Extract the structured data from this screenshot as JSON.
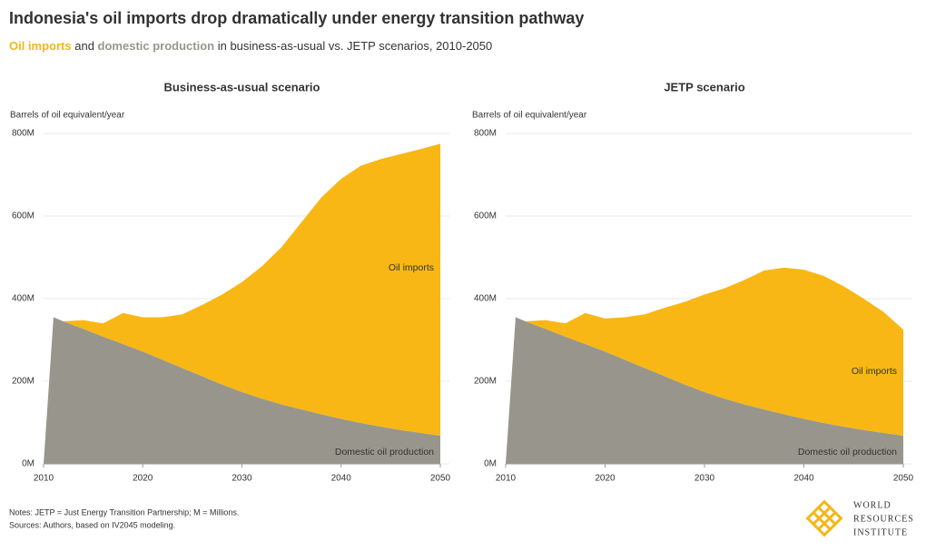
{
  "title": "Indonesia's oil imports drop dramatically under energy transition pathway",
  "subtitle": [
    {
      "text": "Oil imports",
      "color": "#f6b618",
      "bold": true
    },
    {
      "text": " and "
    },
    {
      "text": "domestic production",
      "color": "#98968c",
      "bold": true
    },
    {
      "text": " in business-as-usual vs. JETP scenarios, 2010-2050"
    }
  ],
  "chart_data": [
    {
      "type": "area",
      "stacked": true,
      "title": "Business-as-usual scenario",
      "y_label": "Barrels of oil equivalent/year",
      "x": [
        2010,
        2011,
        2012,
        2014,
        2016,
        2018,
        2020,
        2022,
        2024,
        2026,
        2028,
        2030,
        2032,
        2034,
        2036,
        2038,
        2040,
        2042,
        2044,
        2046,
        2048,
        2050
      ],
      "xlim": [
        2010,
        2050
      ],
      "xticks": [
        2010,
        2020,
        2030,
        2040,
        2050
      ],
      "ylim": [
        0,
        800
      ],
      "yticks": [
        {
          "value": 0,
          "label": "0M"
        },
        {
          "value": 200,
          "label": "200M"
        },
        {
          "value": 400,
          "label": "400M"
        },
        {
          "value": 600,
          "label": "600M"
        },
        {
          "value": 800,
          "label": "800M"
        }
      ],
      "grid": true,
      "series": [
        {
          "name": "Domestic oil production",
          "color": "#98968c",
          "values": [
            0,
            355,
            345,
            327,
            308,
            290,
            272,
            252,
            232,
            212,
            192,
            174,
            158,
            144,
            132,
            120,
            109,
            99,
            90,
            82,
            75,
            68
          ]
        },
        {
          "name": "Oil imports",
          "color": "#f8b714",
          "values": [
            0,
            0,
            0,
            21,
            32,
            75,
            83,
            103,
            130,
            173,
            218,
            266,
            320,
            381,
            453,
            525,
            581,
            623,
            648,
            668,
            687,
            707
          ]
        }
      ]
    },
    {
      "type": "area",
      "stacked": true,
      "title": "JETP scenario",
      "y_label": "Barrels of oil equivalent/year",
      "x": [
        2010,
        2011,
        2012,
        2014,
        2016,
        2018,
        2020,
        2022,
        2024,
        2026,
        2028,
        2030,
        2032,
        2034,
        2036,
        2038,
        2040,
        2042,
        2044,
        2046,
        2048,
        2050
      ],
      "xlim": [
        2010,
        2050
      ],
      "xticks": [
        2010,
        2020,
        2030,
        2040,
        2050
      ],
      "ylim": [
        0,
        800
      ],
      "yticks": [
        {
          "value": 0,
          "label": "0M"
        },
        {
          "value": 200,
          "label": "200M"
        },
        {
          "value": 400,
          "label": "400M"
        },
        {
          "value": 600,
          "label": "600M"
        },
        {
          "value": 800,
          "label": "800M"
        }
      ],
      "grid": true,
      "series": [
        {
          "name": "Domestic oil production",
          "color": "#98968c",
          "values": [
            0,
            355,
            345,
            327,
            308,
            290,
            272,
            252,
            232,
            212,
            192,
            174,
            158,
            144,
            132,
            120,
            109,
            99,
            90,
            82,
            75,
            68
          ]
        },
        {
          "name": "Oil imports",
          "color": "#f8b714",
          "values": [
            0,
            0,
            0,
            21,
            32,
            75,
            80,
            103,
            130,
            166,
            200,
            236,
            267,
            301,
            336,
            355,
            361,
            356,
            340,
            318,
            293,
            257
          ]
        }
      ]
    }
  ],
  "notes": [
    "Notes: JETP = Just Energy Transition Partnership; M = Millions.",
    "Sources: Authors, based on IV2045 modeling."
  ],
  "logo": [
    "WORLD",
    "RESOURCES",
    "INSTITUTE"
  ]
}
